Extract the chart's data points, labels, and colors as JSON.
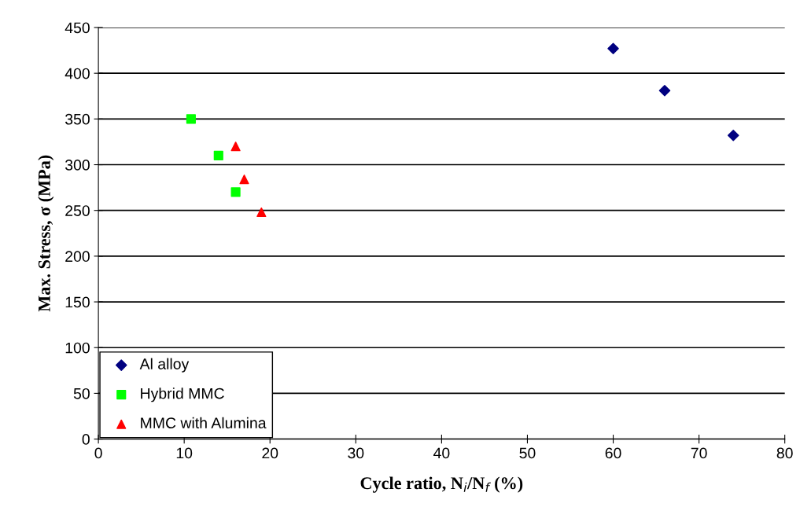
{
  "chart_data": {
    "type": "scatter",
    "xlabel": "Cycle ratio, N$_{i}$/N$_{f}$ (%)",
    "ylabel": "Max. Stress, σ (MPa)",
    "xlim": [
      0,
      80
    ],
    "xticks": [
      0,
      10,
      20,
      30,
      40,
      50,
      60,
      70,
      80
    ],
    "ylim": [
      0,
      450
    ],
    "yticks": [
      0,
      50,
      100,
      150,
      200,
      250,
      300,
      350,
      400,
      450
    ],
    "grid": "y",
    "legend": "bottom left",
    "series": [
      {
        "name": "Al alloy",
        "color": "#000080",
        "marker": "diamond",
        "x": [
          60,
          66,
          74
        ],
        "values": [
          427,
          381,
          332
        ]
      },
      {
        "name": "Hybrid MMC",
        "color": "#00ff00",
        "marker": "square",
        "x": [
          10.8,
          14,
          16
        ],
        "values": [
          350,
          310,
          270
        ]
      },
      {
        "name": "MMC with Alumina",
        "color": "#ff0000",
        "marker": "triangle",
        "x": [
          16,
          17,
          19
        ],
        "values": [
          320,
          284,
          248
        ]
      }
    ]
  }
}
